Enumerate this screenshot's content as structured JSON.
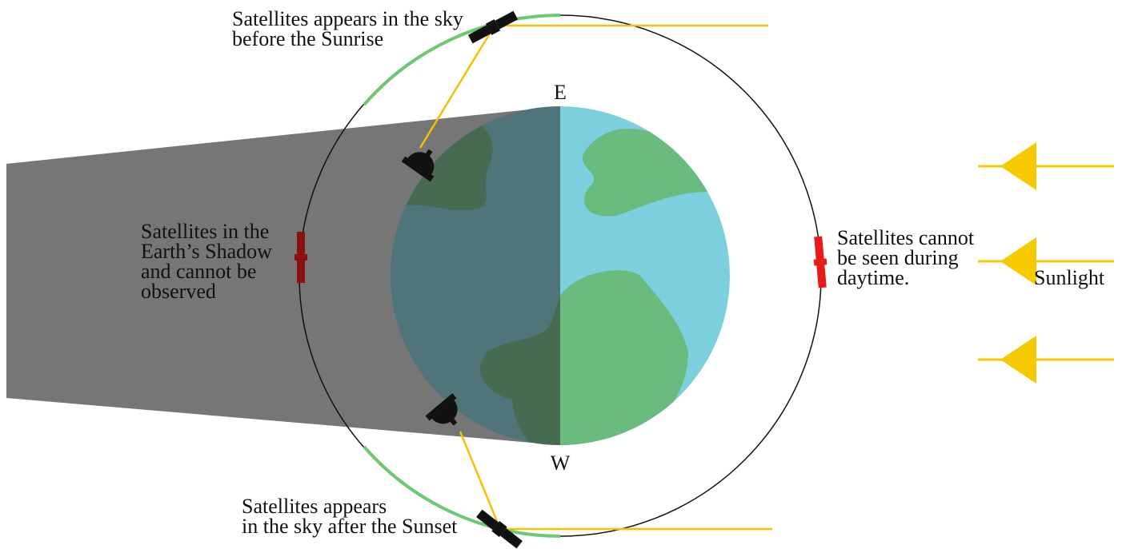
{
  "labels": {
    "sunrise": [
      "Satellites appears in the sky",
      "before the Sunrise"
    ],
    "east": "E",
    "west": "W",
    "shadow": [
      "Satellites in the",
      "Earth’s Shadow",
      "and cannot be",
      "observed"
    ],
    "daytime": [
      "Satellites cannot",
      "be seen during",
      "daytime."
    ],
    "sunlight": "Sunlight",
    "sunset": [
      "Satellites appears",
      "in the sky after the Sunset"
    ]
  }
}
